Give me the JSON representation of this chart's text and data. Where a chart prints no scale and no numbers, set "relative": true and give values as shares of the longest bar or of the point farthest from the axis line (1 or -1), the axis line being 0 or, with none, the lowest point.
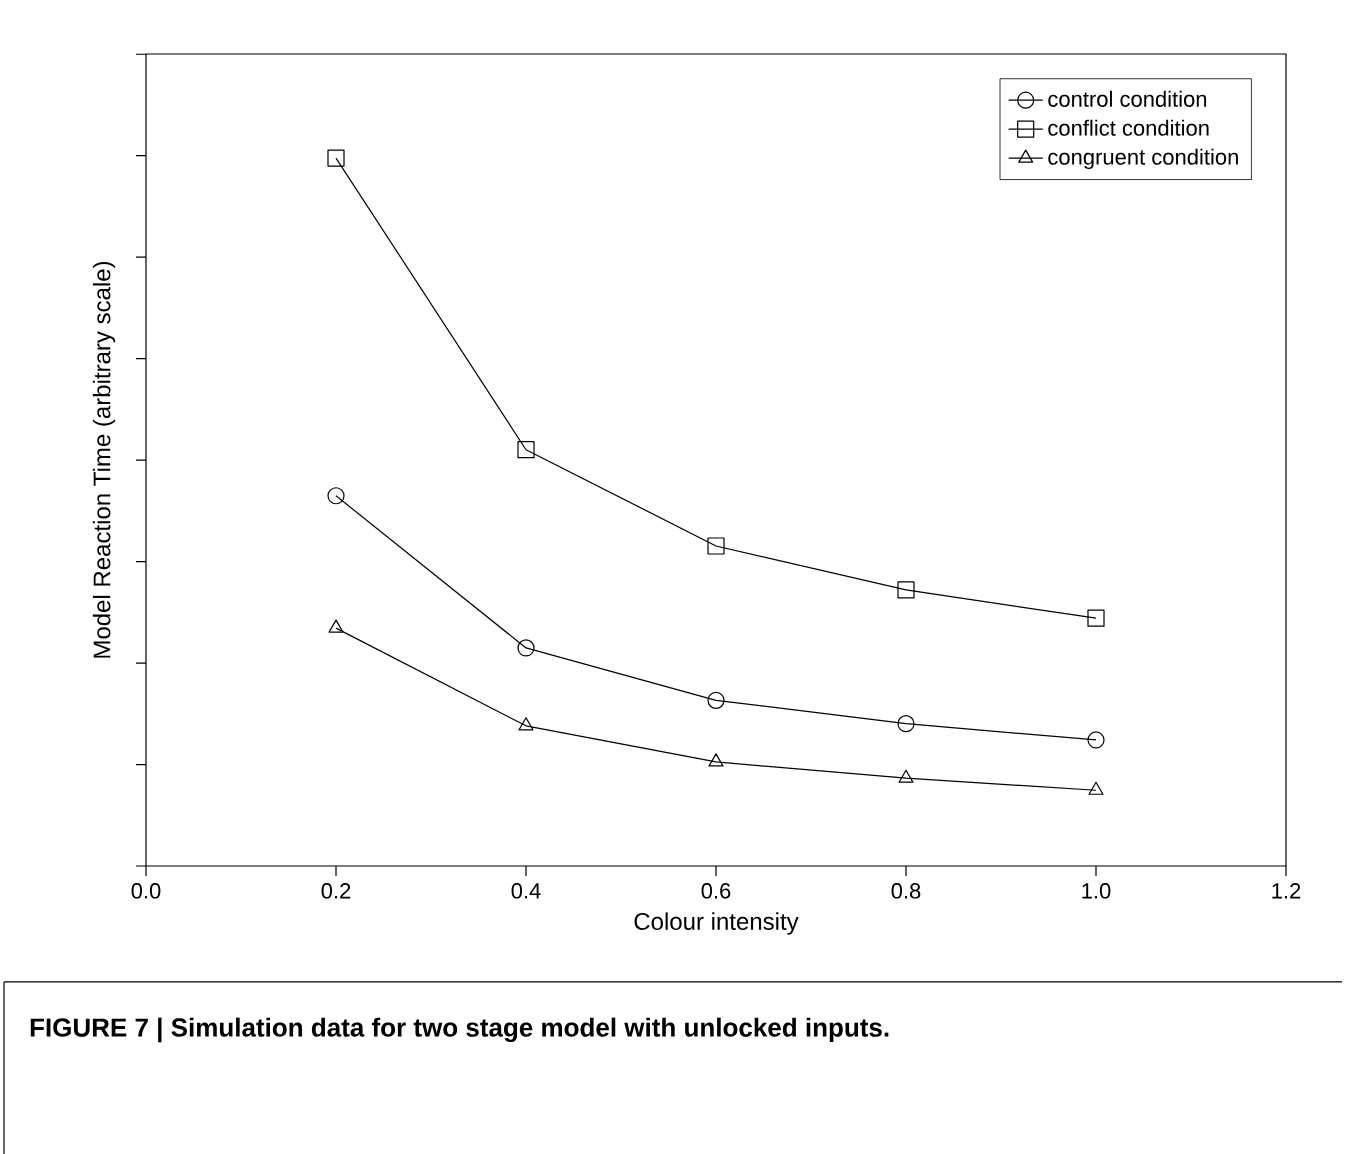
{
  "chart_data": {
    "type": "line",
    "relative": true,
    "xlabel": "Colour intensity",
    "ylabel": "Model Reaction Time (arbitrary scale)",
    "x": [
      0.2,
      0.4,
      0.6,
      0.8,
      1.0
    ],
    "xlim": [
      0.0,
      1.2
    ],
    "xticks": [
      {
        "value": 0.0,
        "label": "0.0"
      },
      {
        "value": 0.2,
        "label": "0.2"
      },
      {
        "value": 0.4,
        "label": "0.4"
      },
      {
        "value": 0.6,
        "label": "0.6"
      },
      {
        "value": 0.8,
        "label": "0.8"
      },
      {
        "value": 1.0,
        "label": "1.0"
      },
      {
        "value": 1.2,
        "label": "1.2"
      }
    ],
    "series": [
      {
        "name": "control condition",
        "color": "#000000",
        "marker": "circle",
        "values": [
          0.523,
          0.308,
          0.234,
          0.201,
          0.178
        ]
      },
      {
        "name": "conflict condition",
        "color": "#000000",
        "marker": "square",
        "values": [
          1.0,
          0.588,
          0.452,
          0.39,
          0.35
        ]
      },
      {
        "name": "congruent condition",
        "color": "#000000",
        "marker": "triangle",
        "values": [
          0.336,
          0.198,
          0.147,
          0.124,
          0.107
        ]
      }
    ],
    "legend": "top right",
    "grid": false,
    "line_style": "solid",
    "annotations": [
      "FIGURE 7 | Simulation data for two stage model with unlocked inputs."
    ]
  }
}
